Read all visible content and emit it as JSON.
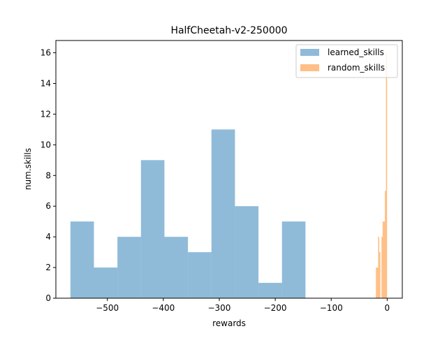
{
  "chart_data": {
    "type": "bar",
    "title": "HalfCheetah-v2-250000",
    "xlabel": "rewards",
    "ylabel": "num.skills",
    "xlim": [
      -592,
      27
    ],
    "ylim": [
      0,
      16.8
    ],
    "xticks": [
      -500,
      -400,
      -300,
      -200,
      -100,
      0
    ],
    "xtick_labels": [
      "−500",
      "−400",
      "−300",
      "−200",
      "−100",
      "0"
    ],
    "yticks": [
      0,
      2,
      4,
      6,
      8,
      10,
      12,
      14,
      16
    ],
    "ytick_labels": [
      "0",
      "2",
      "4",
      "6",
      "8",
      "10",
      "12",
      "14",
      "16"
    ],
    "grid": false,
    "legend_position": "top-right",
    "series": [
      {
        "name": "learned_skills",
        "color": "#1f77b4",
        "alpha": 0.5,
        "bins": [
          {
            "x0": -566,
            "x1": -524,
            "count": 5
          },
          {
            "x0": -524,
            "x1": -482,
            "count": 2
          },
          {
            "x0": -482,
            "x1": -440,
            "count": 4
          },
          {
            "x0": -440,
            "x1": -398,
            "count": 9
          },
          {
            "x0": -398,
            "x1": -356,
            "count": 4
          },
          {
            "x0": -356,
            "x1": -314,
            "count": 3
          },
          {
            "x0": -314,
            "x1": -272,
            "count": 11
          },
          {
            "x0": -272,
            "x1": -230,
            "count": 6
          },
          {
            "x0": -230,
            "x1": -188,
            "count": 1
          },
          {
            "x0": -188,
            "x1": -146,
            "count": 5
          }
        ]
      },
      {
        "name": "random_skills",
        "color": "#ff7f0e",
        "alpha": 0.5,
        "bins": [
          {
            "x0": -20.2,
            "x1": -18.2,
            "count": 2
          },
          {
            "x0": -18.2,
            "x1": -16.2,
            "count": 2
          },
          {
            "x0": -16.2,
            "x1": -14.2,
            "count": 4
          },
          {
            "x0": -14.2,
            "x1": -12.2,
            "count": 3
          },
          {
            "x0": -12.2,
            "x1": -10.2,
            "count": 0
          },
          {
            "x0": -10.2,
            "x1": -8.2,
            "count": 4
          },
          {
            "x0": -8.2,
            "x1": -6.2,
            "count": 5
          },
          {
            "x0": -6.2,
            "x1": -4.2,
            "count": 5
          },
          {
            "x0": -4.2,
            "x1": -2.2,
            "count": 7
          },
          {
            "x0": -2.2,
            "x1": -0.2,
            "count": 16
          }
        ]
      }
    ]
  }
}
